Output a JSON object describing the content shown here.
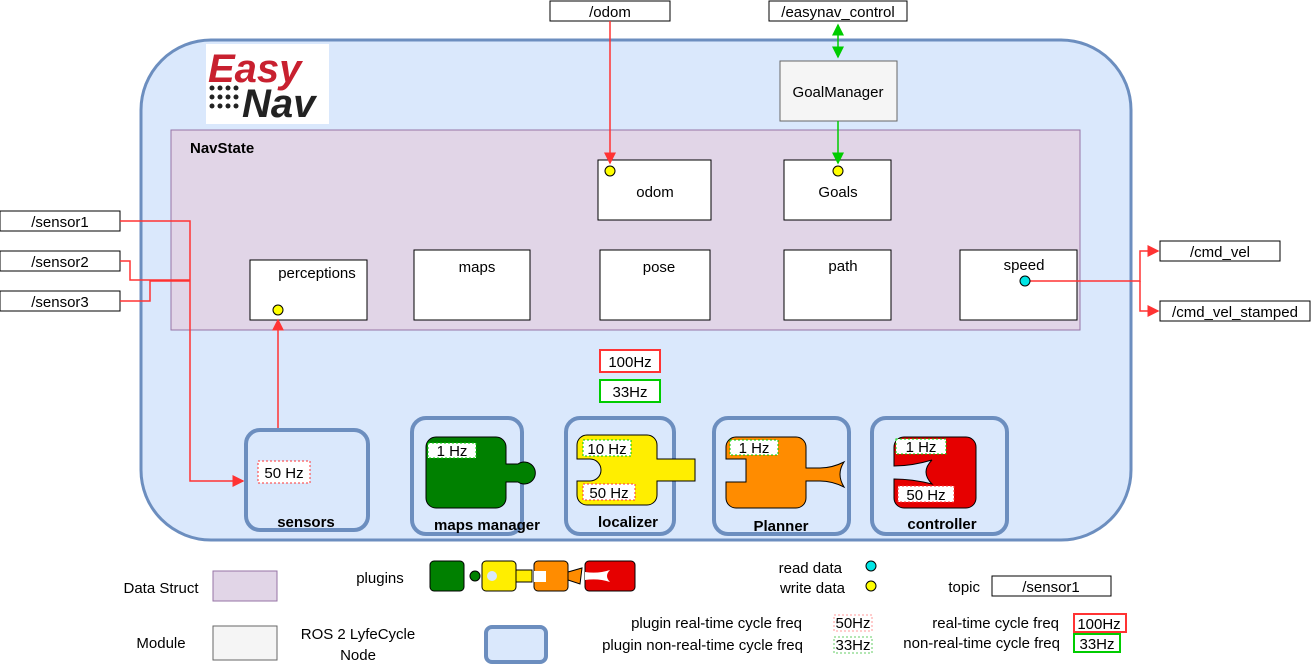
{
  "logo": {
    "line1": "Easy",
    "line2": "Nav"
  },
  "topics": {
    "odom": "/odom",
    "easynav_control": "/easynav_control",
    "sensor1": "/sensor1",
    "sensor2": "/sensor2",
    "sensor3": "/sensor3",
    "cmd_vel": "/cmd_vel",
    "cmd_vel_stamped": "/cmd_vel_stamped"
  },
  "goal_manager": "GoalManager",
  "navstate": {
    "title": "NavState",
    "fields": {
      "odom": "odom",
      "goals": "Goals",
      "perceptions": "perceptions",
      "maps": "maps",
      "pose": "pose",
      "path": "path",
      "speed": "speed"
    }
  },
  "node_freq": {
    "realtime": "100Hz",
    "non_realtime": "33Hz"
  },
  "modules": {
    "sensors": {
      "label": "sensors",
      "rt": "50 Hz"
    },
    "maps_manager": {
      "label": "maps manager",
      "nrt": "1 Hz"
    },
    "localizer": {
      "label": "localizer",
      "nrt": "10 Hz",
      "rt": "50 Hz"
    },
    "planner": {
      "label": "Planner",
      "nrt": "1 Hz"
    },
    "controller": {
      "label": "controller",
      "nrt": "1 Hz",
      "rt": "50 Hz"
    }
  },
  "legend": {
    "data_struct": "Data Struct",
    "module": "Module",
    "plugins": "plugins",
    "ros2_node": "ROS 2 LyfeCycle Node",
    "ros2_node_line1": "ROS 2 LyfeCycle",
    "ros2_node_line2": "Node",
    "read_data": "read data",
    "write_data": "write data",
    "topic": "topic",
    "topic_example": "/sensor1",
    "plugin_rt": "plugin real-time cycle freq",
    "plugin_rt_value": "50Hz",
    "plugin_nrt": "plugin non-real-time cycle freq",
    "plugin_nrt_value": "33Hz",
    "rt": "real-time cycle freq",
    "rt_value": "100Hz",
    "nrt": "non-real-time cycle freq",
    "nrt_value": "33Hz"
  },
  "colors": {
    "node_fill": "#dae8fc",
    "node_stroke": "#6c8ebf",
    "navstate_fill": "#e1d5e7",
    "navstate_stroke": "#9673a6",
    "write_line": "#ff3333",
    "control_line": "#00cc00",
    "read_dot": "#00e5e5",
    "write_dot": "#ffff00",
    "plugin_green": "#008000",
    "plugin_yellow": "#ffee00",
    "plugin_orange": "#ff8c00",
    "plugin_red": "#e60000"
  }
}
